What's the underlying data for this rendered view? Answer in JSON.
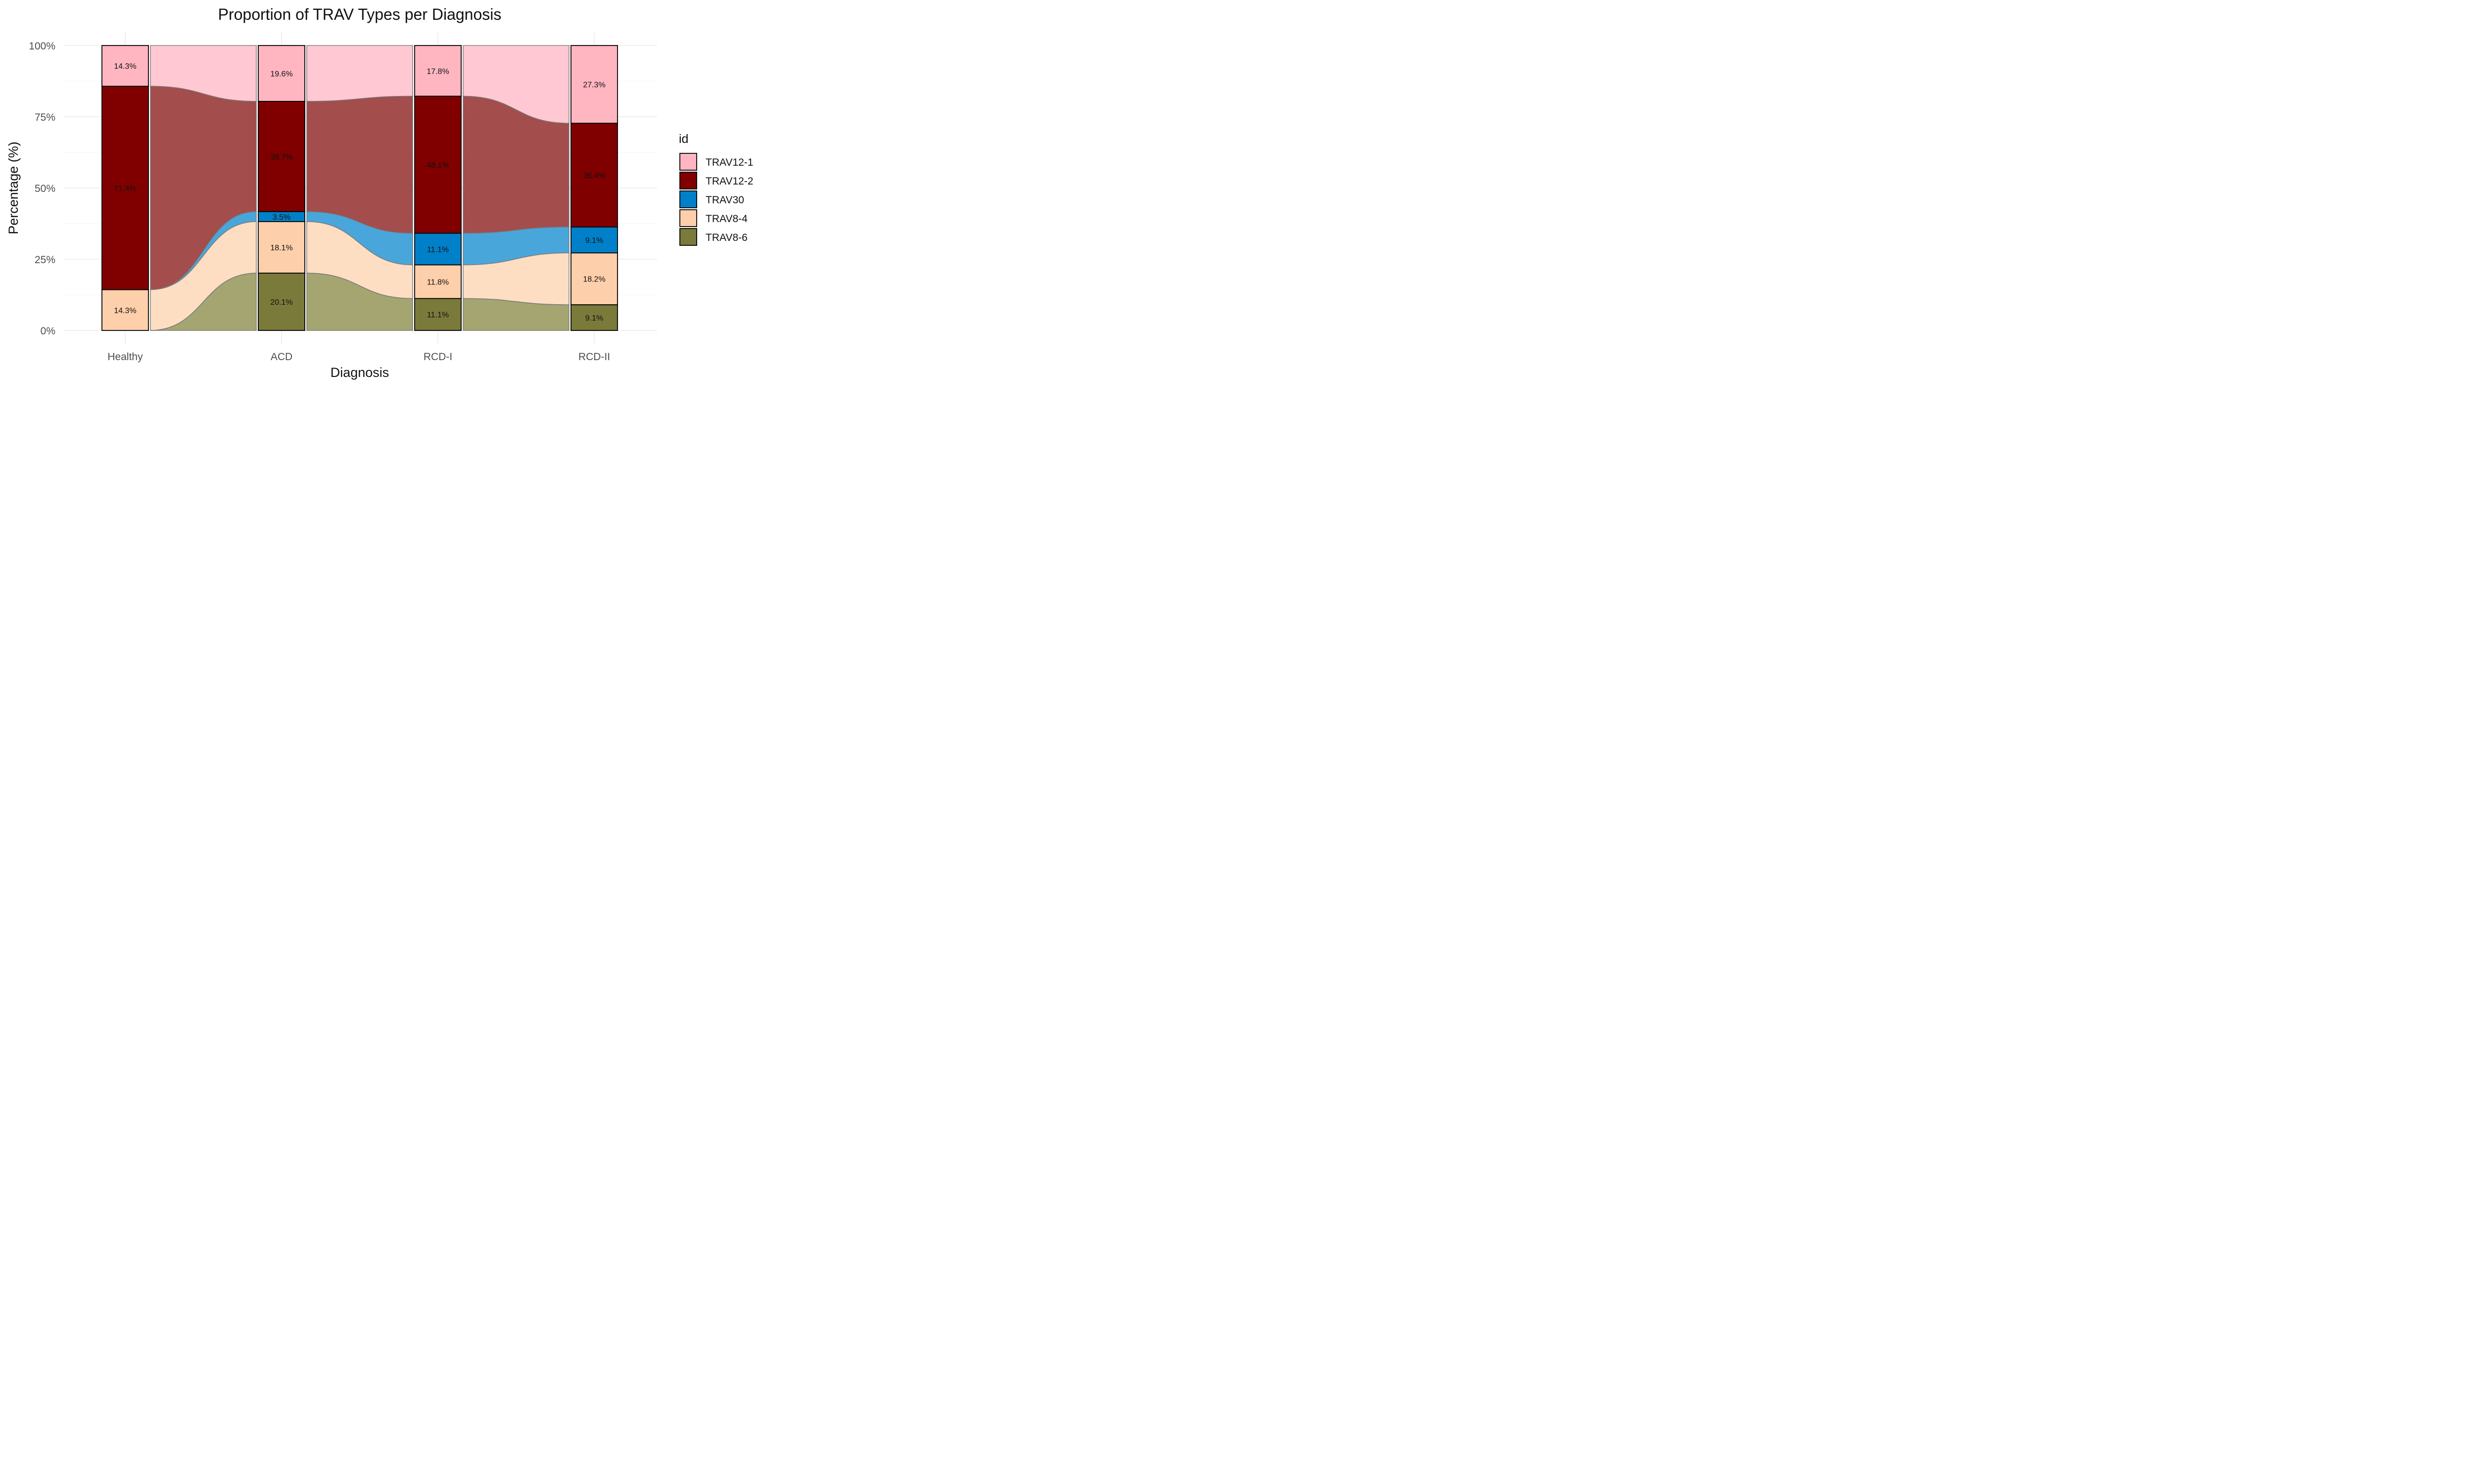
{
  "chart_data": {
    "type": "bar",
    "title": "Proportion of TRAV Types per Diagnosis",
    "xlabel": "Diagnosis",
    "ylabel": "Percentage (%)",
    "ylim": [
      0,
      100
    ],
    "y_ticks": [
      "0%",
      "25%",
      "50%",
      "75%",
      "100%"
    ],
    "y_tick_values": [
      0,
      25,
      50,
      75,
      100
    ],
    "categories": [
      "Healthy",
      "ACD",
      "RCD-I",
      "RCD-II"
    ],
    "legend": {
      "title": "id",
      "position": "right"
    },
    "grid": true,
    "stack_order_top_to_bottom": [
      "TRAV12-1",
      "TRAV12-2",
      "TRAV30",
      "TRAV8-4",
      "TRAV8-6"
    ],
    "series": [
      {
        "name": "TRAV12-1",
        "color": "#FFB6C1",
        "flow_color": "#FFC8D2",
        "values": [
          14.3,
          19.6,
          17.8,
          27.3
        ],
        "labels": [
          "14.3%",
          "19.6%",
          "17.8%",
          "27.3%"
        ]
      },
      {
        "name": "TRAV12-2",
        "color": "#800000",
        "flow_color": "#A34D4D",
        "values": [
          71.4,
          38.7,
          48.1,
          36.4
        ],
        "labels": [
          "71.4%",
          "38.7%",
          "48.1%",
          "36.4%"
        ]
      },
      {
        "name": "TRAV30",
        "color": "#0080C8",
        "flow_color": "#49A6DB",
        "values": [
          0,
          3.5,
          11.1,
          9.1
        ],
        "labels": [
          "",
          "3.5%",
          "11.1%",
          "9.1%"
        ]
      },
      {
        "name": "TRAV8-4",
        "color": "#FDCFAA",
        "flow_color": "#FDDEC3",
        "values": [
          14.3,
          18.1,
          11.8,
          18.2
        ],
        "labels": [
          "14.3%",
          "18.1%",
          "11.8%",
          "18.2%"
        ]
      },
      {
        "name": "TRAV8-6",
        "color": "#7A7A3A",
        "flow_color": "#A5A572",
        "values": [
          0,
          20.1,
          11.1,
          9.1
        ],
        "labels": [
          "",
          "20.1%",
          "11.1%",
          "9.1%"
        ]
      }
    ]
  }
}
